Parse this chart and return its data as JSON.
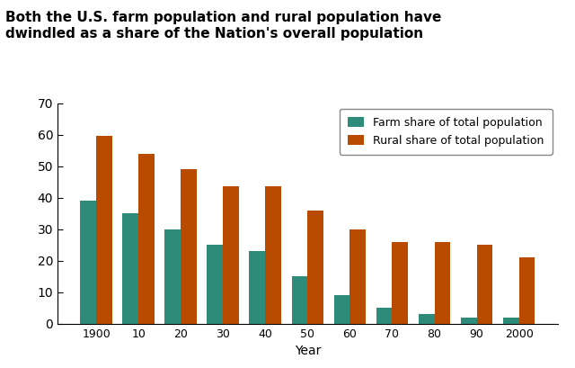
{
  "title": "Both the U.S. farm population and rural population have\ndwindled as a share of the Nation's overall population",
  "xlabel": "Year",
  "years": [
    "1900",
    "10",
    "20",
    "30",
    "40",
    "50",
    "60",
    "70",
    "80",
    "90",
    "2000"
  ],
  "farm_values": [
    39,
    35,
    30,
    25,
    23,
    15,
    9,
    5,
    3,
    2,
    2
  ],
  "rural_values": [
    59.5,
    54,
    49,
    43.5,
    43.5,
    36,
    30,
    26,
    26,
    25,
    21
  ],
  "farm_color": "#2E8B7A",
  "rural_color": "#B84B00",
  "farm_label": "Farm share of total population",
  "rural_label": "Rural share of total population",
  "ylim": [
    0,
    70
  ],
  "yticks": [
    0,
    10,
    20,
    30,
    40,
    50,
    60,
    70
  ],
  "background_color": "#FFFFFF",
  "title_fontsize": 11,
  "bar_width": 0.38
}
